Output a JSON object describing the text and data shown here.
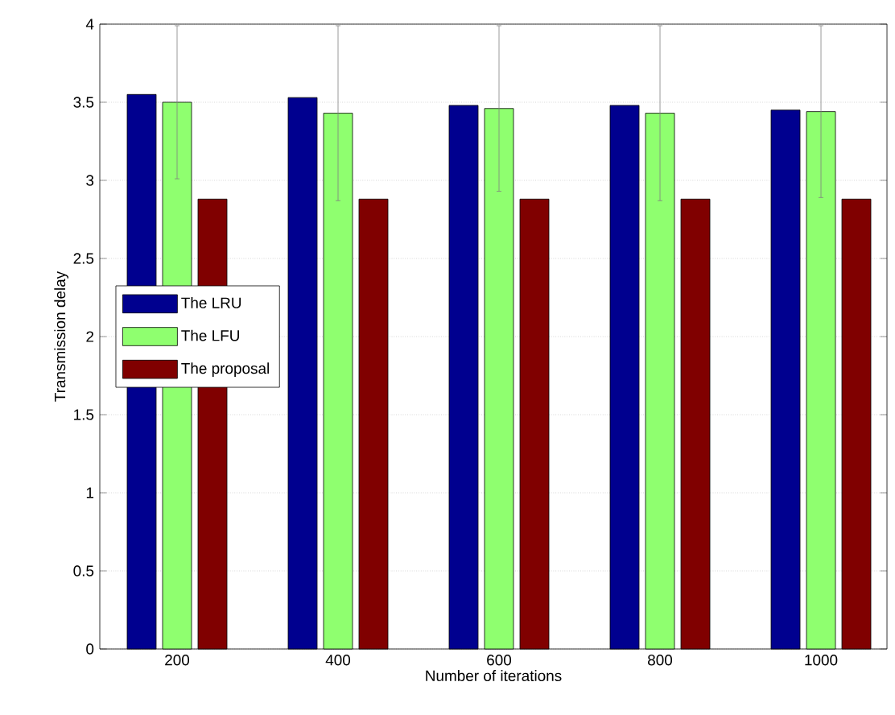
{
  "chart_data": {
    "type": "bar",
    "xlabel": "Number of iterations",
    "ylabel": "Transmission delay",
    "categories": [
      "200",
      "400",
      "600",
      "800",
      "1000"
    ],
    "series": [
      {
        "name": "The LRU",
        "color": "#00008f",
        "values": [
          3.55,
          3.53,
          3.48,
          3.48,
          3.45
        ]
      },
      {
        "name": "The LFU",
        "color": "#8fff6f",
        "values": [
          3.5,
          3.43,
          3.46,
          3.43,
          3.44
        ],
        "errors": [
          0.49,
          0.56,
          0.53,
          0.56,
          0.55
        ]
      },
      {
        "name": "The proposal",
        "color": "#800000",
        "values": [
          2.88,
          2.88,
          2.88,
          2.88,
          2.88
        ]
      }
    ],
    "ylim": [
      0,
      4
    ],
    "yticks": [
      0,
      0.5,
      1,
      1.5,
      2,
      2.5,
      3,
      3.5,
      4
    ],
    "grid": "y",
    "legend": "left"
  }
}
